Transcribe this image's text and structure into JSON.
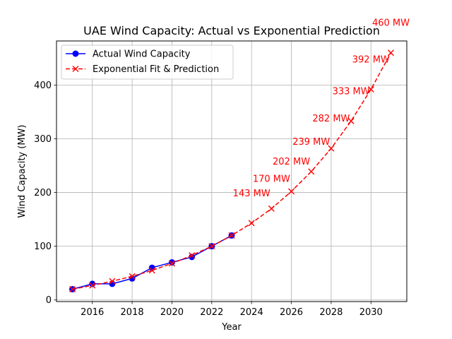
{
  "chart_data": {
    "type": "line",
    "title": "UAE Wind Capacity: Actual vs Exponential Prediction",
    "xlabel": "Year",
    "ylabel": "Wind Capacity (MW)",
    "xlim": [
      2014.2,
      2031.8
    ],
    "ylim": [
      -3,
      482
    ],
    "grid": true,
    "legend_position": "upper-left",
    "x_ticks": [
      2016,
      2018,
      2020,
      2022,
      2024,
      2026,
      2028,
      2030
    ],
    "y_ticks": [
      0,
      100,
      200,
      300,
      400
    ],
    "series": [
      {
        "name": "Actual Wind Capacity",
        "color": "#0000ff",
        "style": "solid",
        "marker": "circle",
        "x": [
          2015,
          2016,
          2017,
          2018,
          2019,
          2020,
          2021,
          2022,
          2023
        ],
        "y": [
          20,
          30,
          30,
          40,
          60,
          70,
          80,
          100,
          120
        ]
      },
      {
        "name": "Exponential Fit & Prediction",
        "color": "#ff0000",
        "style": "dashed",
        "marker": "x",
        "x": [
          2015,
          2016,
          2017,
          2018,
          2019,
          2020,
          2021,
          2022,
          2023,
          2024,
          2025,
          2026,
          2027,
          2028,
          2029,
          2030,
          2031
        ],
        "y": [
          20,
          27,
          35,
          44,
          55,
          68,
          83,
          100,
          120,
          143,
          170,
          202,
          239,
          282,
          333,
          392,
          460
        ]
      }
    ],
    "annotations": [
      {
        "x": 2024,
        "y": 143,
        "text": "143 MW"
      },
      {
        "x": 2025,
        "y": 170,
        "text": "170 MW"
      },
      {
        "x": 2026,
        "y": 202,
        "text": "202 MW"
      },
      {
        "x": 2027,
        "y": 239,
        "text": "239 MW"
      },
      {
        "x": 2028,
        "y": 282,
        "text": "282 MW"
      },
      {
        "x": 2029,
        "y": 333,
        "text": "333 MW"
      },
      {
        "x": 2030,
        "y": 392,
        "text": "392 MW"
      },
      {
        "x": 2031,
        "y": 460,
        "text": "460 MW"
      }
    ],
    "annotation_color": "#ff0000"
  }
}
